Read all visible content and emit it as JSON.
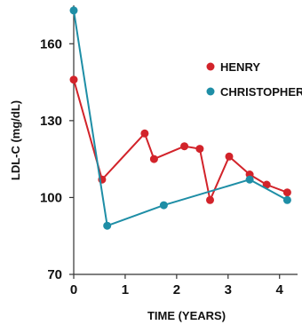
{
  "chart_data": {
    "type": "line",
    "xlabel": "TIME (YEARS)",
    "ylabel": "LDL-C (mg/dL)",
    "xlim": [
      0,
      4.35
    ],
    "ylim": [
      70,
      175
    ],
    "x_ticks": [
      "0",
      "1",
      "2",
      "3",
      "4"
    ],
    "y_ticks": [
      "70",
      "100",
      "130",
      "160"
    ],
    "grid": false,
    "legend_position": "top-right",
    "series": [
      {
        "name": "HENRY",
        "color": "#d2232a",
        "x": [
          0,
          0.55,
          1.38,
          1.56,
          2.15,
          2.45,
          2.65,
          3.02,
          3.42,
          3.75,
          4.15
        ],
        "y": [
          146,
          107,
          125,
          115,
          120,
          119,
          99,
          116,
          109,
          105,
          102
        ]
      },
      {
        "name": "CHRISTOPHER",
        "color": "#1e8ea6",
        "x": [
          0,
          0.65,
          1.75,
          3.42,
          4.15
        ],
        "y": [
          173,
          89,
          97,
          107,
          99
        ]
      }
    ]
  }
}
